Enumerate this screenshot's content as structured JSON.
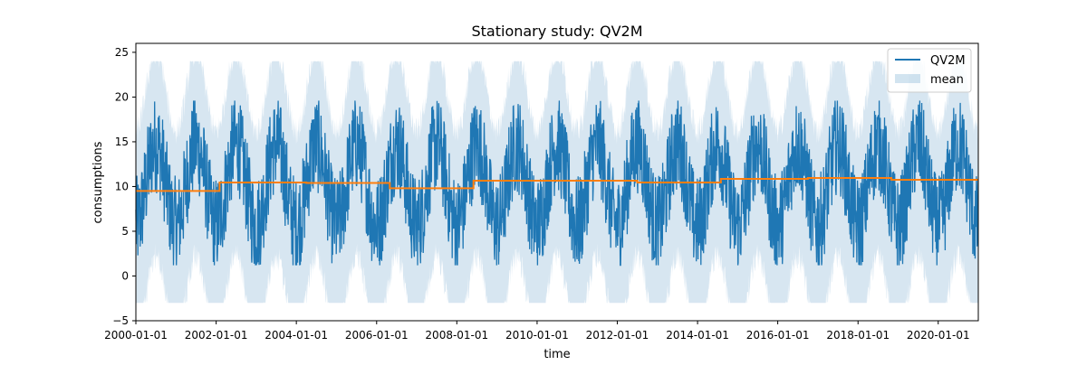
{
  "chart_data": {
    "type": "line",
    "title": "Stationary study: QV2M",
    "xlabel": "time",
    "ylabel": "consumptions",
    "xlim": [
      "2000-01-01",
      "2020-12-31"
    ],
    "ylim": [
      -5,
      26
    ],
    "yticks": [
      -5,
      0,
      5,
      10,
      15,
      20,
      25
    ],
    "xticks": [
      "2000-01-01",
      "2002-01-01",
      "2004-01-01",
      "2006-01-01",
      "2008-01-01",
      "2010-01-01",
      "2012-01-01",
      "2014-01-01",
      "2016-01-01",
      "2018-01-01",
      "2020-01-01"
    ],
    "legend": {
      "placement": "top-right",
      "entries": [
        "QV2M",
        "mean"
      ]
    },
    "series": [
      {
        "name": "QV2M",
        "kind": "line",
        "color": "#1f77b4",
        "description_values": {
          "typical_min": 2,
          "typical_max": 19,
          "seasonal_period": "1 year"
        },
        "approx_range": [
          1.2,
          19.6
        ]
      },
      {
        "name": "mean",
        "kind": "band",
        "color": "#1f77b4",
        "opacity": 0.2,
        "approx_range": [
          -3,
          24
        ]
      },
      {
        "name": "",
        "kind": "step",
        "color": "#ff7f0e",
        "segments": [
          {
            "start": "2000-01-01",
            "end": "2002-02-01",
            "value": 9.5
          },
          {
            "start": "2002-02-01",
            "end": "2004-04-01",
            "value": 10.45
          },
          {
            "start": "2004-04-01",
            "end": "2006-05-01",
            "value": 10.4
          },
          {
            "start": "2006-05-01",
            "end": "2008-06-01",
            "value": 9.8
          },
          {
            "start": "2008-06-01",
            "end": "2012-07-01",
            "value": 10.65
          },
          {
            "start": "2012-07-01",
            "end": "2014-08-01",
            "value": 10.45
          },
          {
            "start": "2014-08-01",
            "end": "2016-10-01",
            "value": 10.85
          },
          {
            "start": "2016-10-01",
            "end": "2018-11-01",
            "value": 10.95
          },
          {
            "start": "2018-11-01",
            "end": "2020-12-31",
            "value": 10.75
          }
        ]
      }
    ]
  }
}
